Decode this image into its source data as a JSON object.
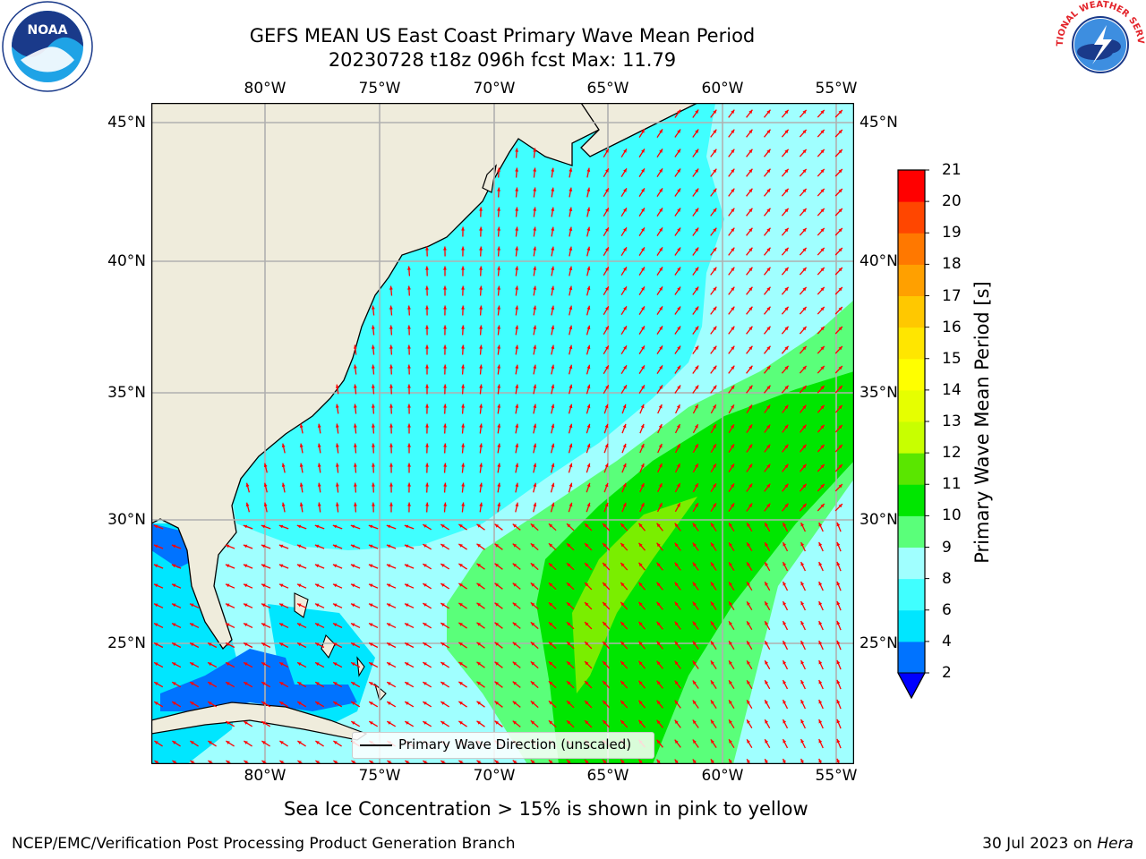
{
  "title": {
    "line1": "GEFS MEAN US East Coast Primary Wave Mean Period",
    "line2": "20230728 t18z 096h fcst   Max: 11.79"
  },
  "map": {
    "lon_ticks": [
      "80°W",
      "75°W",
      "70°W",
      "65°W",
      "60°W",
      "55°W"
    ],
    "lat_ticks": [
      "45°N",
      "40°N",
      "35°N",
      "30°N",
      "25°N"
    ],
    "colors": {
      "land": "#efecdc",
      "grid": "#b0b0b0",
      "arrow": "#ff0000",
      "coast": "#000000"
    }
  },
  "legend": {
    "label": "Primary Wave Direction (unscaled)"
  },
  "colorbar": {
    "label": "Primary Wave Mean Period [s]",
    "ticks": [
      "2",
      "4",
      "6",
      "8",
      "9",
      "10",
      "11",
      "12",
      "13",
      "14",
      "15",
      "16",
      "17",
      "18",
      "19",
      "20",
      "21"
    ],
    "colors": [
      "#0073ff",
      "#00e6ff",
      "#40ffff",
      "#a0ffff",
      "#5aff7a",
      "#00e600",
      "#5ae600",
      "#c8ff00",
      "#e6ff00",
      "#ffff00",
      "#ffe600",
      "#ffc800",
      "#ffa000",
      "#ff7800",
      "#ff4600",
      "#ff0000"
    ],
    "under_color": "#0000ff"
  },
  "notes": {
    "ice": "Sea Ice Concentration > 15% is shown in pink to yellow",
    "footer_left": "NCEP/EMC/Verification Post Processing Product Generation Branch",
    "footer_date": "30 Jul 2023 on ",
    "footer_machine": "Hera"
  },
  "logos": {
    "left": "NOAA",
    "right": "NATIONAL WEATHER SERVICE"
  }
}
